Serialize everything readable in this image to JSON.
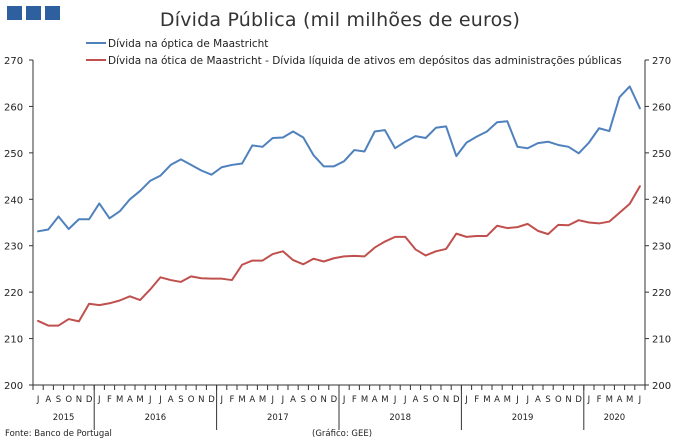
{
  "header": {
    "logo_color": "#2e5f9e"
  },
  "chart_data": {
    "type": "line",
    "title": "Dívida Pública (mil milhões de euros)",
    "ylim": [
      200,
      270
    ],
    "yticks": [
      200,
      210,
      220,
      230,
      240,
      250,
      260,
      270
    ],
    "grid": false,
    "legend_position": "top",
    "x": [
      "J",
      "A",
      "S",
      "O",
      "N",
      "D",
      "J",
      "F",
      "M",
      "A",
      "M",
      "J",
      "J",
      "A",
      "S",
      "O",
      "N",
      "D",
      "J",
      "F",
      "M",
      "A",
      "M",
      "J",
      "J",
      "A",
      "S",
      "O",
      "N",
      "D",
      "J",
      "F",
      "M",
      "A",
      "M",
      "J",
      "J",
      "A",
      "S",
      "O",
      "N",
      "D",
      "J",
      "F",
      "M",
      "A",
      "M",
      "J",
      "J",
      "A",
      "S",
      "O",
      "N",
      "D",
      "J",
      "F",
      "M",
      "A",
      "M",
      "J"
    ],
    "years": [
      {
        "label": "2015",
        "start": 0,
        "end": 5
      },
      {
        "label": "2016",
        "start": 6,
        "end": 17
      },
      {
        "label": "2017",
        "start": 18,
        "end": 29
      },
      {
        "label": "2018",
        "start": 30,
        "end": 41
      },
      {
        "label": "2019",
        "start": 42,
        "end": 53
      },
      {
        "label": "2020",
        "start": 54,
        "end": 59
      }
    ],
    "series": [
      {
        "name": "Dívida na óptica de Maastricht",
        "color": "#4f81bd",
        "values": [
          233.1,
          233.5,
          236.3,
          233.6,
          235.7,
          235.7,
          239.1,
          235.9,
          237.4,
          240.0,
          241.8,
          244.0,
          245.1,
          247.4,
          248.6,
          247.4,
          246.2,
          245.3,
          246.9,
          247.4,
          247.7,
          251.6,
          251.3,
          253.2,
          253.3,
          254.6,
          253.3,
          249.5,
          247.1,
          247.1,
          248.2,
          250.6,
          250.3,
          254.6,
          254.9,
          251.0,
          252.4,
          253.6,
          253.2,
          255.4,
          255.7,
          249.3,
          252.2,
          253.5,
          254.6,
          256.6,
          256.8,
          251.3,
          251.0,
          252.1,
          252.4,
          251.7,
          251.3,
          249.9,
          252.2,
          255.3,
          254.7,
          262.0,
          264.3,
          259.6
        ]
      },
      {
        "name": "Dívida na ótica de Maastricht - Dívida líquida de ativos em depósitos das administrações públicas",
        "color": "#c0504d",
        "values": [
          213.8,
          212.8,
          212.8,
          214.2,
          213.7,
          217.5,
          217.2,
          217.6,
          218.2,
          219.1,
          218.3,
          220.6,
          223.2,
          222.6,
          222.2,
          223.4,
          223.0,
          222.9,
          222.9,
          222.6,
          225.9,
          226.8,
          226.8,
          228.2,
          228.8,
          226.9,
          226.0,
          227.2,
          226.6,
          227.3,
          227.7,
          227.8,
          227.7,
          229.6,
          230.9,
          231.9,
          231.9,
          229.2,
          227.9,
          228.8,
          229.3,
          232.6,
          231.9,
          232.1,
          232.1,
          234.3,
          233.8,
          234.0,
          234.7,
          233.2,
          232.5,
          234.5,
          234.4,
          235.5,
          235.0,
          234.8,
          235.2,
          237.1,
          239.0,
          242.8
        ]
      }
    ]
  },
  "footer": {
    "source": "Fonte: Banco de Portugal",
    "credit": "(Gráfico: GEE)"
  }
}
